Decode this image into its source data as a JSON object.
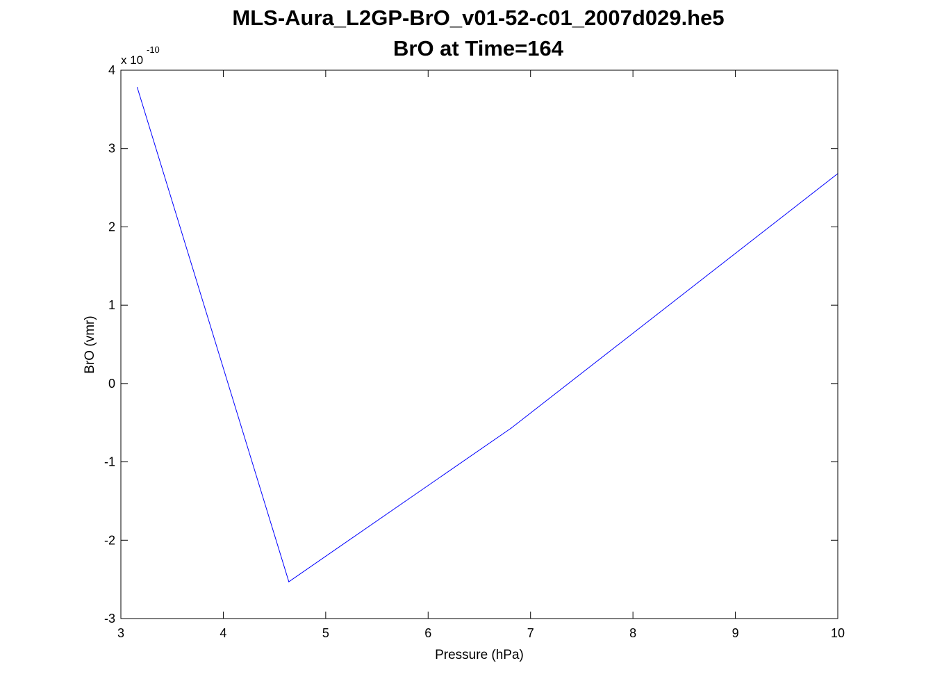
{
  "chart_data": {
    "type": "line",
    "title": "MLS-Aura_L2GP-BrO_v01-52-c01_2007d029.he5",
    "subtitle": "BrO at Time=164",
    "xlabel": "Pressure (hPa)",
    "ylabel": "BrO (vmr)",
    "y_multiplier_text": "x 10",
    "y_multiplier_exp": "-10",
    "xlim": [
      3,
      10
    ],
    "ylim": [
      -3,
      4
    ],
    "xticks": [
      3,
      4,
      5,
      6,
      7,
      8,
      9,
      10
    ],
    "yticks": [
      -3,
      -2,
      -1,
      0,
      1,
      2,
      3,
      4
    ],
    "grid": false,
    "series": [
      {
        "color": "#0000ff",
        "x": [
          3.16,
          4.64,
          6.81,
          10.0
        ],
        "y": [
          3.78,
          -2.53,
          -0.57,
          2.68
        ]
      }
    ]
  }
}
